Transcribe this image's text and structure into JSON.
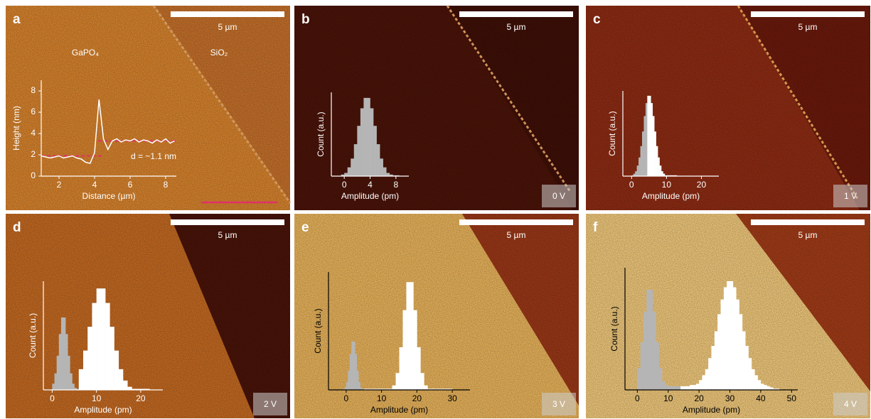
{
  "chart_data": [
    {
      "type": "line",
      "panel_label": "a",
      "scale_bar": "5 µm",
      "region_labels": [
        "GaPO₄",
        "SiO₂"
      ],
      "annotation": "d = ~1.1 nm",
      "xlabel": "Distance (µm)",
      "ylabel": "Height (nm)",
      "color": "#ffffff",
      "x": [
        1,
        1.25,
        1.5,
        1.75,
        2,
        2.25,
        2.5,
        2.75,
        3,
        3.25,
        3.5,
        3.75,
        4,
        4.25,
        4.5,
        4.75,
        5,
        5.25,
        5.5,
        5.75,
        6,
        6.25,
        6.5,
        6.75,
        7,
        7.25,
        7.5,
        7.75,
        8,
        8.25,
        8.5
      ],
      "values": [
        1.9,
        1.8,
        1.7,
        1.8,
        1.9,
        1.7,
        1.8,
        1.9,
        1.7,
        1.6,
        1.3,
        1.2,
        2.2,
        7.2,
        3.5,
        2.5,
        3.3,
        3.5,
        3.2,
        3.4,
        3.3,
        3.5,
        3.2,
        3.4,
        3.3,
        3.1,
        3.4,
        3.2,
        3.5,
        3.1,
        3.3
      ],
      "xlim": [
        1,
        8.6
      ],
      "ylim": [
        0,
        9
      ],
      "xticks": [
        2,
        4,
        6,
        8
      ],
      "yticks": [
        0,
        2,
        4,
        6,
        8
      ],
      "reference_lines": [
        {
          "y": 1.9,
          "x": [
            1,
            4.4
          ],
          "color": "#e0306a"
        },
        {
          "y": 3.3,
          "x": [
            4.2,
            8.6
          ],
          "color": "#e0306a"
        }
      ]
    },
    {
      "type": "histogram",
      "panel_label": "b",
      "scale_bar": "5 µm",
      "voltage": "0 V",
      "xlabel": "Amplitude (pm)",
      "ylabel": "Count (a.u.)",
      "xlim": [
        -2,
        10
      ],
      "ylim": [
        0,
        1.05
      ],
      "xticks": [
        0,
        4,
        8
      ],
      "series": [
        {
          "color": "#b5b5b5",
          "bins": [
            -0.5,
            0,
            0.5,
            1,
            1.5,
            2,
            2.5,
            3,
            3.5,
            4,
            4.5,
            5,
            5.5,
            6,
            6.5,
            7,
            7.5,
            8,
            8.5
          ],
          "values": [
            0.02,
            0.04,
            0.11,
            0.22,
            0.4,
            0.63,
            0.85,
            0.98,
            0.98,
            0.85,
            0.63,
            0.4,
            0.22,
            0.11,
            0.04,
            0.02,
            0.01,
            0.01
          ]
        }
      ]
    },
    {
      "type": "histogram",
      "panel_label": "c",
      "scale_bar": "5 µm",
      "voltage": "1 V",
      "xlabel": "Amplitude (pm)",
      "ylabel": "Count (a.u.)",
      "xlim": [
        -2.5,
        25
      ],
      "ylim": [
        0,
        1.05
      ],
      "xticks": [
        0,
        10,
        20
      ],
      "series": [
        {
          "color": "#b5b5b5",
          "bins": [
            0,
            0.5,
            1,
            1.5,
            2,
            2.5,
            3,
            3.5,
            4,
            4.5
          ],
          "values": [
            0.01,
            0.03,
            0.06,
            0.13,
            0.23,
            0.37,
            0.55,
            0.74,
            0.9
          ]
        },
        {
          "color": "#ffffff",
          "bins": [
            4.5,
            5,
            5.5,
            6,
            6.5,
            7,
            7.5,
            8,
            8.5,
            9,
            9.5,
            10,
            10.5,
            11,
            11.5,
            12,
            12.5,
            13
          ],
          "values": [
            0.99,
            0.99,
            0.9,
            0.74,
            0.55,
            0.37,
            0.23,
            0.13,
            0.06,
            0.03,
            0.01,
            0.01,
            0.01,
            0.01,
            0.01,
            0.01,
            0.01
          ]
        }
      ]
    },
    {
      "type": "histogram",
      "panel_label": "d",
      "scale_bar": "5 µm",
      "voltage": "2 V",
      "xlabel": "Amplitude (pm)",
      "ylabel": "Count (a.u.)",
      "xlim": [
        -2,
        25
      ],
      "ylim": [
        0,
        1.05
      ],
      "xticks": [
        0,
        10,
        20
      ],
      "series": [
        {
          "color": "#b5b5b5",
          "bins": [
            0,
            0.5,
            1,
            1.5,
            2,
            2.5,
            3,
            3.5,
            4,
            4.5,
            5,
            5.5,
            6
          ],
          "values": [
            0.06,
            0.16,
            0.33,
            0.54,
            0.7,
            0.7,
            0.54,
            0.33,
            0.16,
            0.06,
            0.02,
            0.01
          ]
        },
        {
          "color": "#ffffff",
          "bins": [
            6,
            7,
            8,
            9,
            10,
            11,
            12,
            13,
            14,
            15,
            16,
            17,
            18,
            19,
            20,
            21,
            22
          ],
          "values": [
            0.2,
            0.38,
            0.61,
            0.84,
            0.98,
            0.98,
            0.84,
            0.61,
            0.38,
            0.2,
            0.09,
            0.03,
            0.01,
            0.01,
            0.01,
            0.01
          ]
        }
      ]
    },
    {
      "type": "histogram",
      "panel_label": "e",
      "scale_bar": "5 µm",
      "voltage": "3 V",
      "xlabel": "Amplitude (pm)",
      "ylabel": "Count (a.u.)",
      "xlim": [
        -5,
        35
      ],
      "ylim": [
        0,
        1.05
      ],
      "xticks": [
        0,
        10,
        20,
        30
      ],
      "series": [
        {
          "color": "#b5b5b5",
          "bins": [
            -1,
            -0.5,
            0,
            0.5,
            1,
            1.5,
            2,
            2.5,
            3,
            3.5,
            4,
            4.5,
            5
          ],
          "values": [
            0.01,
            0.02,
            0.07,
            0.17,
            0.32,
            0.43,
            0.43,
            0.32,
            0.17,
            0.07,
            0.02,
            0.01
          ]
        },
        {
          "color": "#ffffff",
          "bins": [
            5,
            6,
            7,
            8,
            9,
            10,
            11,
            12,
            13,
            14,
            15,
            16,
            17,
            18,
            19,
            20,
            21,
            22,
            23,
            24,
            25,
            26,
            27,
            28,
            29,
            30
          ],
          "values": [
            0.01,
            0.01,
            0.01,
            0.01,
            0.01,
            0.01,
            0.01,
            0.01,
            0.04,
            0.15,
            0.38,
            0.71,
            0.96,
            0.96,
            0.71,
            0.38,
            0.15,
            0.04,
            0.01,
            0.01,
            0.01,
            0.01,
            0.01,
            0.01,
            0.01
          ]
        }
      ]
    },
    {
      "type": "histogram",
      "panel_label": "f",
      "scale_bar": "5 µm",
      "voltage": "4 V",
      "xlabel": "Amplitude (pm)",
      "ylabel": "Count (a.u.)",
      "xlim": [
        -4,
        52
      ],
      "ylim": [
        0,
        1
      ],
      "xticks": [
        0,
        10,
        20,
        30,
        40,
        50
      ],
      "series": [
        {
          "color": "#b5b5b5",
          "bins": [
            0,
            1,
            2,
            3,
            4,
            5,
            6,
            7,
            8,
            9,
            10,
            11,
            12,
            13,
            14
          ],
          "values": [
            0.18,
            0.39,
            0.64,
            0.82,
            0.82,
            0.64,
            0.39,
            0.18,
            0.07,
            0.04,
            0.03,
            0.03,
            0.03,
            0.03
          ]
        },
        {
          "color": "#ffffff",
          "bins": [
            14,
            15,
            16,
            17,
            18,
            19,
            20,
            21,
            22,
            23,
            24,
            25,
            26,
            27,
            28,
            29,
            30,
            31,
            32,
            33,
            34,
            35,
            36,
            37,
            38,
            39,
            40,
            41,
            42,
            43,
            44,
            45,
            46
          ],
          "values": [
            0.03,
            0.03,
            0.03,
            0.04,
            0.04,
            0.05,
            0.08,
            0.12,
            0.17,
            0.26,
            0.36,
            0.48,
            0.62,
            0.74,
            0.84,
            0.89,
            0.89,
            0.84,
            0.74,
            0.62,
            0.48,
            0.36,
            0.26,
            0.17,
            0.12,
            0.08,
            0.05,
            0.04,
            0.03,
            0.02,
            0.01,
            0.01
          ]
        }
      ]
    }
  ]
}
